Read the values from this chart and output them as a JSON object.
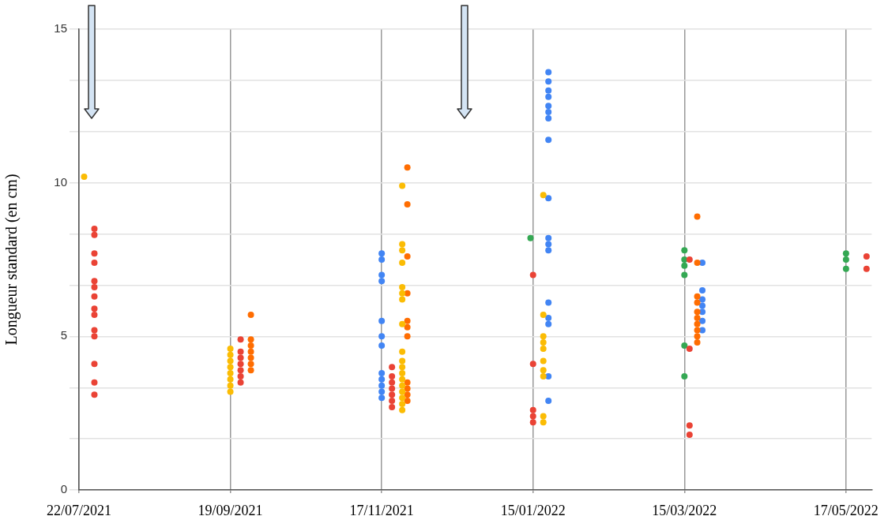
{
  "chart_data": {
    "type": "scatter",
    "ylabel": "Longueur standard (en cm)",
    "xlim": [
      "2021-07-22",
      "2022-05-27"
    ],
    "xticks": [
      {
        "value": "2021-07-22",
        "label": "22/07/2021"
      },
      {
        "value": "2021-09-19",
        "label": "19/09/2021"
      },
      {
        "value": "2021-11-17",
        "label": "17/11/2021"
      },
      {
        "value": "2022-01-15",
        "label": "15/01/2022"
      },
      {
        "value": "2022-03-15",
        "label": "15/03/2022"
      },
      {
        "value": "2022-05-17",
        "label": "17/05/2022"
      }
    ],
    "ylim": [
      0,
      15
    ],
    "yticks": [
      0,
      {
        "value": 1.67,
        "label": null
      },
      {
        "value": 3.33,
        "label": null
      },
      5,
      {
        "value": 6.67,
        "label": null
      },
      {
        "value": 8.33,
        "label": null
      },
      10,
      {
        "value": 11.67,
        "label": null
      },
      {
        "value": 13.33,
        "label": null
      },
      15
    ],
    "grid": true,
    "legend": false,
    "marker": "circle",
    "series": [
      {
        "color": "#ea4335",
        "x": [
          "2021-07-28",
          "2021-07-28",
          "2021-07-28",
          "2021-07-28",
          "2021-07-28",
          "2021-07-28",
          "2021-07-28",
          "2021-07-28",
          "2021-07-28",
          "2021-07-28",
          "2021-07-28",
          "2021-07-28",
          "2021-07-28",
          "2021-07-28",
          "2021-09-23",
          "2021-09-23",
          "2021-09-23",
          "2021-09-23",
          "2021-09-23",
          "2021-09-23",
          "2021-09-23",
          "2021-11-21",
          "2021-11-21",
          "2021-11-21",
          "2021-11-21",
          "2021-11-21",
          "2021-11-21",
          "2021-11-21",
          "2022-01-15",
          "2022-01-15",
          "2022-01-15",
          "2022-01-15",
          "2022-01-15",
          "2022-03-17",
          "2022-03-17",
          "2022-03-17",
          "2022-03-17",
          "2022-05-25",
          "2022-05-25"
        ],
        "values": [
          8.5,
          8.3,
          7.7,
          7.4,
          6.8,
          6.6,
          6.3,
          5.9,
          5.7,
          5.2,
          5.0,
          4.1,
          3.5,
          3.1,
          4.9,
          4.5,
          4.3,
          4.1,
          3.9,
          3.7,
          3.5,
          4.0,
          3.7,
          3.5,
          3.3,
          3.1,
          2.9,
          2.7,
          7.0,
          4.1,
          2.6,
          2.4,
          2.2,
          7.5,
          4.6,
          2.1,
          1.8,
          7.6,
          7.2
        ]
      },
      {
        "color": "#fbbc04",
        "x": [
          "2021-07-24",
          "2021-09-19",
          "2021-09-19",
          "2021-09-19",
          "2021-09-19",
          "2021-09-19",
          "2021-09-19",
          "2021-09-19",
          "2021-09-19",
          "2021-11-25",
          "2021-11-25",
          "2021-11-25",
          "2021-11-25",
          "2021-11-25",
          "2021-11-25",
          "2021-11-25",
          "2021-11-25",
          "2021-11-25",
          "2021-11-25",
          "2021-11-25",
          "2021-11-25",
          "2021-11-25",
          "2021-11-25",
          "2021-11-25",
          "2021-11-25",
          "2021-11-25",
          "2021-11-25",
          "2022-01-19",
          "2022-01-19",
          "2022-01-19",
          "2022-01-19",
          "2022-01-19",
          "2022-01-19",
          "2022-01-19",
          "2022-01-19",
          "2022-01-19",
          "2022-01-19"
        ],
        "values": [
          10.2,
          4.6,
          4.4,
          4.2,
          4.0,
          3.8,
          3.6,
          3.4,
          3.2,
          9.9,
          8.0,
          7.8,
          7.4,
          6.6,
          6.4,
          6.2,
          5.4,
          4.5,
          4.2,
          4.0,
          3.8,
          3.6,
          3.4,
          3.2,
          3.0,
          2.8,
          2.6,
          9.6,
          5.7,
          5.0,
          4.8,
          4.6,
          4.2,
          3.9,
          3.7,
          2.4,
          2.2
        ]
      },
      {
        "color": "#ff6d01",
        "x": [
          "2021-09-27",
          "2021-09-27",
          "2021-09-27",
          "2021-09-27",
          "2021-09-27",
          "2021-09-27",
          "2021-09-27",
          "2021-11-27",
          "2021-11-27",
          "2021-11-27",
          "2021-11-27",
          "2021-11-27",
          "2021-11-27",
          "2021-11-27",
          "2021-11-27",
          "2021-11-27",
          "2021-11-27",
          "2021-11-27",
          "2022-03-20",
          "2022-03-20",
          "2022-03-20",
          "2022-03-20",
          "2022-03-20",
          "2022-03-20",
          "2022-03-20",
          "2022-03-20",
          "2022-03-20",
          "2022-03-20"
        ],
        "values": [
          5.7,
          4.9,
          4.7,
          4.5,
          4.3,
          4.1,
          3.9,
          10.5,
          9.3,
          7.6,
          6.4,
          5.5,
          5.3,
          5.0,
          3.5,
          3.3,
          3.1,
          2.9,
          8.9,
          7.4,
          6.3,
          6.1,
          5.8,
          5.6,
          5.4,
          5.2,
          5.0,
          4.8
        ]
      },
      {
        "color": "#4285f4",
        "x": [
          "2021-11-17",
          "2021-11-17",
          "2021-11-17",
          "2021-11-17",
          "2021-11-17",
          "2021-11-17",
          "2021-11-17",
          "2021-11-17",
          "2021-11-17",
          "2021-11-17",
          "2021-11-17",
          "2021-11-17",
          "2022-01-21",
          "2022-01-21",
          "2022-01-21",
          "2022-01-21",
          "2022-01-21",
          "2022-01-21",
          "2022-01-21",
          "2022-01-21",
          "2022-01-21",
          "2022-01-21",
          "2022-01-21",
          "2022-01-21",
          "2022-01-21",
          "2022-01-21",
          "2022-01-21",
          "2022-01-21",
          "2022-01-21",
          "2022-03-22",
          "2022-03-22",
          "2022-03-22",
          "2022-03-22",
          "2022-03-22",
          "2022-03-22",
          "2022-03-22"
        ],
        "values": [
          7.7,
          7.5,
          7.0,
          6.8,
          5.5,
          5.0,
          4.7,
          3.8,
          3.6,
          3.4,
          3.2,
          3.0,
          13.6,
          13.3,
          13.0,
          12.8,
          12.5,
          12.3,
          12.1,
          11.4,
          9.5,
          8.2,
          8.0,
          7.8,
          6.1,
          5.6,
          5.4,
          3.7,
          2.9,
          7.4,
          6.5,
          6.2,
          6.0,
          5.8,
          5.5,
          5.2
        ]
      },
      {
        "color": "#34a853",
        "x": [
          "2022-01-14",
          "2022-03-15",
          "2022-03-15",
          "2022-03-15",
          "2022-03-15",
          "2022-03-15",
          "2022-03-15",
          "2022-05-17",
          "2022-05-17",
          "2022-05-17"
        ],
        "values": [
          8.2,
          7.8,
          7.5,
          7.3,
          7.0,
          4.7,
          3.7,
          7.7,
          7.5,
          7.2
        ]
      }
    ]
  }
}
